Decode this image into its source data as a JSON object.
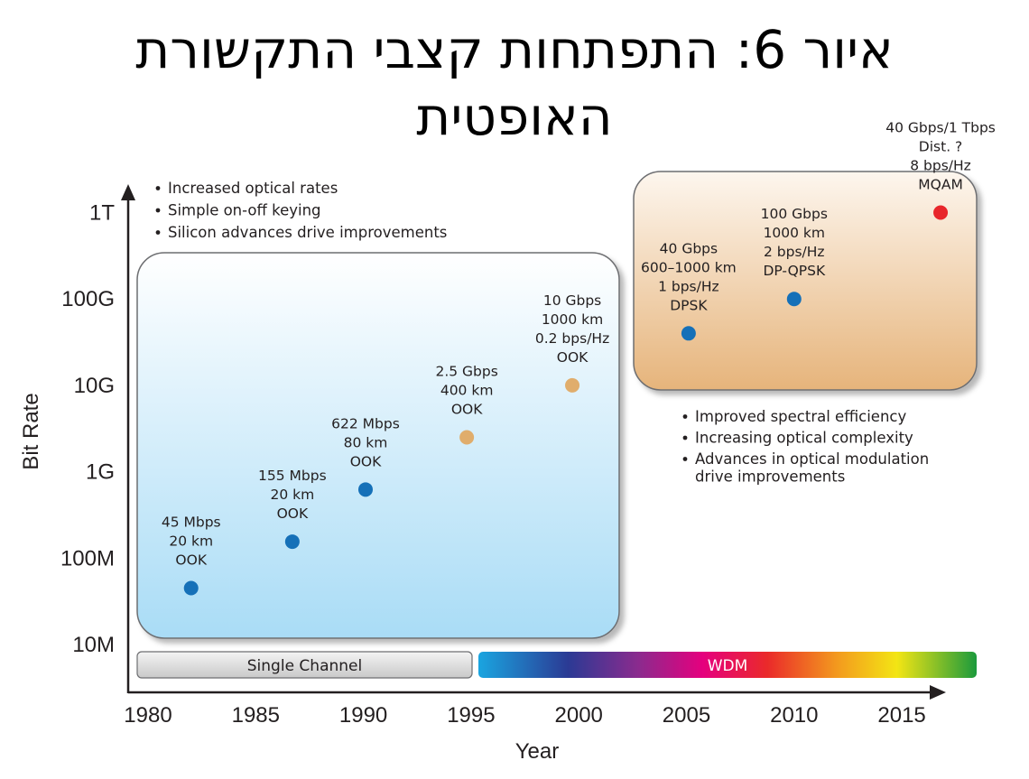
{
  "title": {
    "line1": "איור 6: התפתחות קצבי התקשורת",
    "line2": "האופטית"
  },
  "chart_data": {
    "type": "scatter",
    "xlabel": "Year",
    "ylabel": "Bit Rate",
    "xlim": [
      1980,
      2018
    ],
    "x_ticks": [
      "1980",
      "1985",
      "1990",
      "1995",
      "2000",
      "2005",
      "2010",
      "2015"
    ],
    "y_scale": "log",
    "y_ticks": [
      "10M",
      "100M",
      "1G",
      "10G",
      "100G",
      "1T"
    ],
    "points": [
      {
        "x": 1982,
        "y_label": "45 Mbps",
        "lines": [
          "45 Mbps",
          "20 km",
          "OOK"
        ],
        "color": "#1570b8"
      },
      {
        "x": 1986.7,
        "y_label": "155 Mbps",
        "lines": [
          "155 Mbps",
          "20 km",
          "OOK"
        ],
        "color": "#1570b8"
      },
      {
        "x": 1990.1,
        "y_label": "622 Mbps",
        "lines": [
          "622 Mbps",
          "80 km",
          "OOK"
        ],
        "color": "#1570b8"
      },
      {
        "x": 1994.8,
        "y_label": "2.5 Gbps",
        "lines": [
          "2.5 Gbps",
          "400 km",
          "OOK"
        ],
        "color": "#e0ad6c"
      },
      {
        "x": 1999.7,
        "y_label": "10 Gbps",
        "lines": [
          "10 Gbps",
          "1000 km",
          "0.2 bps/Hz",
          "OOK"
        ],
        "color": "#e0ad6c"
      },
      {
        "x": 2005.1,
        "y_label": "40 Gbps",
        "lines": [
          "40 Gbps",
          "600–1000 km",
          "1 bps/Hz",
          "DPSK"
        ],
        "color": "#1570b8"
      },
      {
        "x": 2010,
        "y_label": "100 Gbps",
        "lines": [
          "100 Gbps",
          "1000 km",
          "2 bps/Hz",
          "DP-QPSK"
        ],
        "color": "#1570b8"
      },
      {
        "x": 2016.8,
        "y_label": "1 Tbps",
        "lines": [
          "40 Gbps/1 Tbps",
          "Dist. ?",
          "8 bps/Hz",
          "MQAM"
        ],
        "color": "#e8262b"
      }
    ],
    "bullets_left": [
      "Increased optical rates",
      "Simple on-off keying",
      "Silicon advances drive improvements"
    ],
    "bullets_right": [
      "Improved spectral efficiency",
      "Increasing optical complexity",
      "Advances in optical modulation",
      "drive improvements"
    ],
    "bands": [
      {
        "label": "Single Channel",
        "from": 1980,
        "to": 1995
      },
      {
        "label": "WDM",
        "from": 1995,
        "to": 2018
      }
    ]
  }
}
